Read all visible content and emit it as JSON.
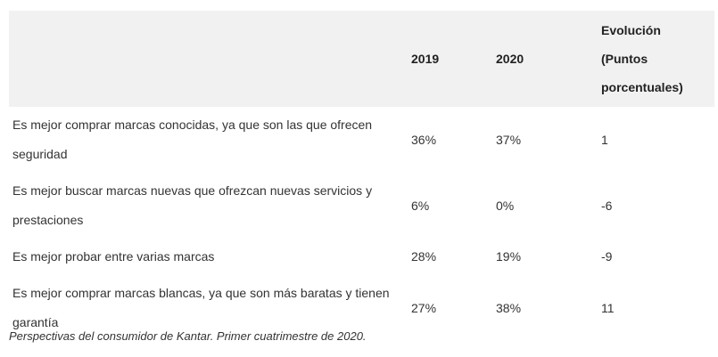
{
  "table": {
    "headers": {
      "statement": "",
      "y2019": "2019",
      "y2020": "2020",
      "evolution": "Evolución (Puntos porcentuales)"
    },
    "rows": [
      {
        "statement": "Es mejor comprar marcas conocidas, ya que son las que ofrecen seguridad",
        "y2019": "36%",
        "y2020": "37%",
        "evolution": "1"
      },
      {
        "statement": "Es mejor buscar marcas nuevas que ofrezcan nuevas servicios y prestaciones",
        "y2019": "6%",
        "y2020": "0%",
        "evolution": "-6"
      },
      {
        "statement": "Es mejor probar entre varias marcas",
        "y2019": "28%",
        "y2020": "19%",
        "evolution": "-9"
      },
      {
        "statement": "Es mejor comprar marcas blancas, ya que son más baratas y tienen garantía",
        "y2019": "27%",
        "y2020": "38%",
        "evolution": "11"
      }
    ]
  },
  "caption": "Perspectivas del consumidor de Kantar. Primer cuatrimestre de 2020.",
  "colors": {
    "header_background": "#f1f1f1",
    "text": "#333333"
  }
}
